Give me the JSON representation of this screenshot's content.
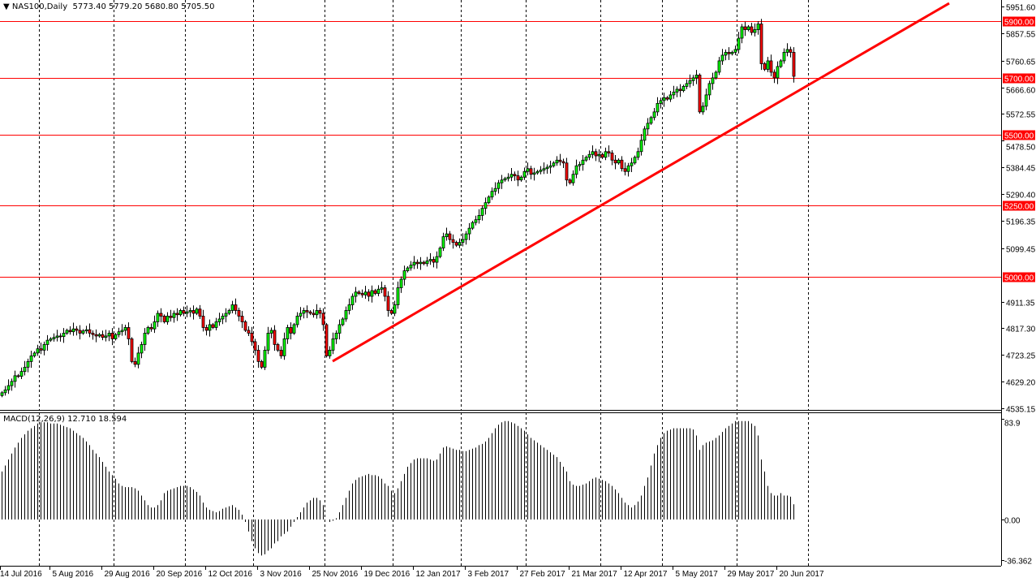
{
  "header": {
    "symbol": "NAS100,Daily",
    "ohlc": "5773.40 5779.20 5680.80 5705.50"
  },
  "macd_label": "MACD(12,26,9) 12.710 18.594",
  "colors": {
    "bull": "#00ff00",
    "bear": "#ff0000",
    "wick": "#000000",
    "level": "#ff0000",
    "trendline": "#ff0000",
    "grid": "#000000"
  },
  "chart_data": [
    {
      "type": "candlestick",
      "title": "NAS100,Daily",
      "yrange": [
        4535.15,
        5951.6
      ],
      "y_ticks": [
        "5951.60",
        "5857.55",
        "5760.65",
        "5666.60",
        "5572.55",
        "5478.50",
        "5384.45",
        "5290.40",
        "5196.35",
        "5099.45",
        "4911.35",
        "4817.30",
        "4723.25",
        "4629.20",
        "4535.15"
      ],
      "x_ticks": [
        "14 Jul 2016",
        "5 Aug 2016",
        "29 Aug 2016",
        "20 Sep 2016",
        "12 Oct 2016",
        "3 Nov 2016",
        "25 Nov 2016",
        "19 Dec 2016",
        "12 Jan 2017",
        "3 Feb 2017",
        "27 Feb 2017",
        "21 Mar 2017",
        "12 Apr 2017",
        "5 May 2017",
        "29 May 2017",
        "20 Jun 2017"
      ],
      "grid": "vertical dashed",
      "first_open": 4580,
      "close": [
        4590,
        4600,
        4615,
        4630,
        4650,
        4648,
        4665,
        4680,
        4700,
        4720,
        4730,
        4745,
        4740,
        4760,
        4775,
        4780,
        4785,
        4790,
        4788,
        4800,
        4810,
        4805,
        4815,
        4810,
        4800,
        4808,
        4812,
        4800,
        4795,
        4790,
        4795,
        4785,
        4790,
        4800,
        4780,
        4795,
        4805,
        4810,
        4820,
        4780,
        4700,
        4690,
        4730,
        4760,
        4800,
        4820,
        4815,
        4840,
        4870,
        4860,
        4840,
        4860,
        4855,
        4870,
        4865,
        4880,
        4870,
        4875,
        4880,
        4870,
        4885,
        4860,
        4820,
        4810,
        4830,
        4820,
        4840,
        4850,
        4860,
        4870,
        4880,
        4900,
        4880,
        4860,
        4840,
        4810,
        4800,
        4770,
        4740,
        4700,
        4680,
        4740,
        4800,
        4810,
        4760,
        4740,
        4720,
        4780,
        4820,
        4800,
        4830,
        4860,
        4870,
        4880,
        4875,
        4870,
        4865,
        4880,
        4870,
        4830,
        4720,
        4740,
        4780,
        4800,
        4830,
        4850,
        4880,
        4900,
        4930,
        4945,
        4940,
        4935,
        4945,
        4930,
        4950,
        4940,
        4955,
        4960,
        4930,
        4880,
        4870,
        4900,
        4960,
        4990,
        5020,
        5030,
        5040,
        5050,
        5045,
        5050,
        5045,
        5055,
        5060,
        5050,
        5070,
        5100,
        5140,
        5150,
        5130,
        5120,
        5110,
        5120,
        5130,
        5150,
        5170,
        5190,
        5200,
        5215,
        5240,
        5260,
        5280,
        5300,
        5310,
        5330,
        5340,
        5345,
        5350,
        5360,
        5355,
        5340,
        5350,
        5370,
        5380,
        5360,
        5365,
        5370,
        5375,
        5380,
        5385,
        5390,
        5400,
        5410,
        5405,
        5400,
        5340,
        5330,
        5360,
        5390,
        5395,
        5410,
        5420,
        5430,
        5440,
        5425,
        5430,
        5420,
        5440,
        5435,
        5410,
        5400,
        5410,
        5380,
        5370,
        5390,
        5400,
        5420,
        5440,
        5480,
        5520,
        5540,
        5560,
        5580,
        5610,
        5620,
        5630,
        5625,
        5640,
        5650,
        5660,
        5655,
        5670,
        5680,
        5690,
        5700,
        5710,
        5580,
        5600,
        5640,
        5680,
        5700,
        5720,
        5760,
        5780,
        5790,
        5785,
        5790,
        5800,
        5840,
        5880,
        5870,
        5880,
        5860,
        5870,
        5890,
        5750,
        5730,
        5760,
        5720,
        5700,
        5740,
        5760,
        5790,
        5800,
        5790,
        5705.5
      ],
      "levels": [
        {
          "price": 5900,
          "label": "5900.00"
        },
        {
          "price": 5700,
          "label": "5700.00"
        },
        {
          "price": 5500,
          "label": "5500.00"
        },
        {
          "price": 5250,
          "label": "5250.00"
        },
        {
          "price": 5000,
          "label": "5000.00"
        }
      ],
      "trendline": {
        "from": {
          "bar": 102,
          "price": 4701
        },
        "to": {
          "bar": 292,
          "price": 5963
        }
      }
    },
    {
      "type": "bar",
      "title": "MACD(12,26,9)",
      "yrange": [
        -36.362,
        83.9
      ],
      "y_ticks": [
        "83.9",
        "0.00",
        "-36.362"
      ],
      "values": [
        40,
        45,
        50,
        55,
        60,
        64,
        68,
        71,
        74,
        76,
        78,
        80,
        81,
        81,
        81,
        80,
        80,
        80,
        79,
        78,
        77,
        76,
        74,
        72,
        70,
        68,
        65,
        62,
        58,
        55,
        52,
        48,
        44,
        40,
        37,
        34,
        30,
        28,
        27,
        27,
        27,
        26,
        24,
        20,
        16,
        12,
        10,
        10,
        12,
        16,
        22,
        24,
        25,
        26,
        27,
        28,
        28,
        28,
        27,
        25,
        23,
        20,
        14,
        10,
        8,
        7,
        6,
        7,
        9,
        10,
        11,
        12,
        10,
        8,
        4,
        -2,
        -10,
        -18,
        -24,
        -28,
        -30,
        -29,
        -26,
        -24,
        -20,
        -18,
        -14,
        -12,
        -10,
        -6,
        -2,
        2,
        6,
        10,
        14,
        16,
        18,
        18,
        16,
        12,
        0,
        -2,
        -1,
        1,
        6,
        12,
        18,
        24,
        30,
        33,
        35,
        36,
        37,
        38,
        37,
        37,
        36,
        34,
        30,
        28,
        24,
        22,
        26,
        32,
        38,
        44,
        47,
        50,
        51,
        51,
        51,
        51,
        50,
        49,
        50,
        55,
        60,
        61,
        60,
        59,
        58,
        58,
        57,
        57,
        58,
        59,
        60,
        62,
        63,
        65,
        68,
        72,
        76,
        79,
        81,
        82,
        82,
        81,
        80,
        78,
        76,
        74,
        71,
        68,
        66,
        64,
        62,
        60,
        58,
        56,
        54,
        52,
        48,
        44,
        40,
        32,
        29,
        28,
        28,
        29,
        30,
        32,
        34,
        35,
        34,
        33,
        32,
        30,
        28,
        25,
        22,
        18,
        14,
        12,
        10,
        12,
        15,
        20,
        28,
        35,
        45,
        55,
        62,
        68,
        72,
        74,
        75,
        76,
        76,
        76,
        76,
        76,
        76,
        75,
        70,
        58,
        62,
        64,
        65,
        66,
        68,
        70,
        73,
        76,
        78,
        80,
        82,
        82,
        82,
        82,
        82,
        80,
        78,
        70,
        50,
        40,
        28,
        22,
        20,
        20,
        22,
        20,
        20,
        19,
        12.71
      ]
    }
  ]
}
